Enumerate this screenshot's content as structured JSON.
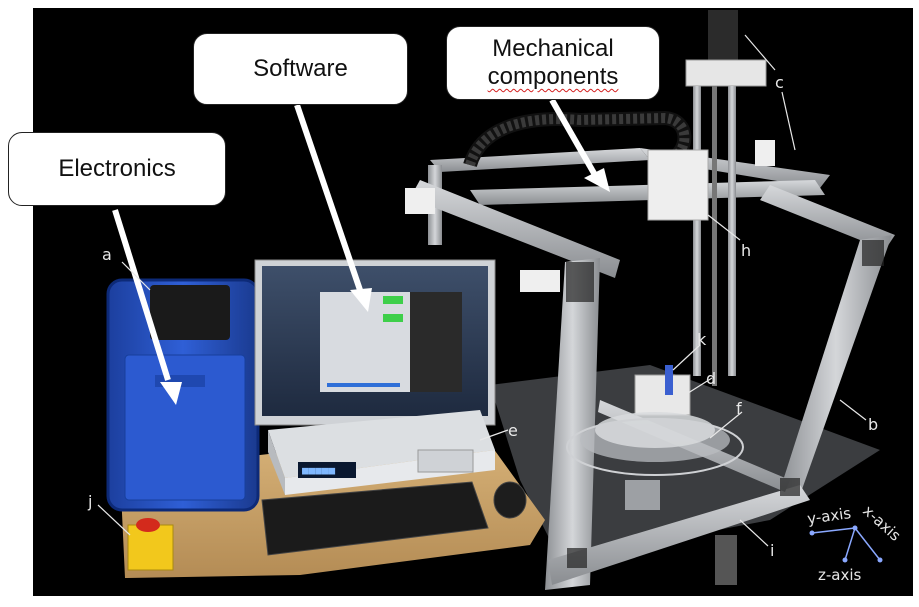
{
  "callouts": {
    "electronics": "Electronics",
    "software": "Software",
    "mechanical_line1": "Mechanical",
    "mechanical_line2": "components"
  },
  "labels": {
    "a": "a",
    "b": "b",
    "c": "c",
    "d": "d",
    "e": "e",
    "f": "f",
    "h": "h",
    "i": "i",
    "j": "j",
    "k": "k"
  },
  "axes": {
    "x": "x-axis",
    "y": "y-axis",
    "z": "z-axis"
  },
  "colors": {
    "background": "#000000",
    "frame": "#b9bcc0",
    "case": "#2a56c8",
    "table": "#c8a26a",
    "arrow": "#ffffff"
  }
}
